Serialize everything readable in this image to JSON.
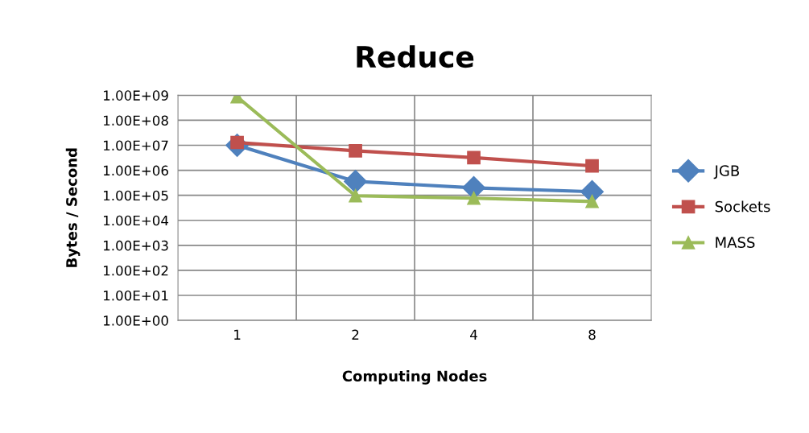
{
  "chart_data": {
    "type": "line",
    "title": "Reduce",
    "xlabel": "Computing Nodes",
    "ylabel": "Bytes / Second",
    "categories": [
      "1",
      "2",
      "4",
      "8"
    ],
    "log": "y",
    "ylim": [
      1,
      1000000000
    ],
    "yticks": [
      {
        "value": 1,
        "label": "1.00E+00"
      },
      {
        "value": 10,
        "label": "1.00E+01"
      },
      {
        "value": 100,
        "label": "1.00E+02"
      },
      {
        "value": 1000,
        "label": "1.00E+03"
      },
      {
        "value": 10000,
        "label": "1.00E+04"
      },
      {
        "value": 100000,
        "label": "1.00E+05"
      },
      {
        "value": 1000000,
        "label": "1.00E+06"
      },
      {
        "value": 10000000,
        "label": "1.00E+07"
      },
      {
        "value": 100000000,
        "label": "1.00E+08"
      },
      {
        "value": 1000000000,
        "label": "1.00E+09"
      }
    ],
    "grid": true,
    "legend": "right",
    "line_style": "solid",
    "series": [
      {
        "name": "JGB",
        "color": "#4f81bd",
        "marker": "diamond",
        "values": [
          10000000,
          360000,
          200000,
          140000
        ]
      },
      {
        "name": "Sockets",
        "color": "#c0504d",
        "marker": "square",
        "values": [
          13000000,
          6000000,
          3200000,
          1500000
        ]
      },
      {
        "name": "MASS",
        "color": "#9bbb59",
        "marker": "triangle",
        "values": [
          870000000,
          96000,
          77000,
          57000
        ]
      }
    ]
  }
}
